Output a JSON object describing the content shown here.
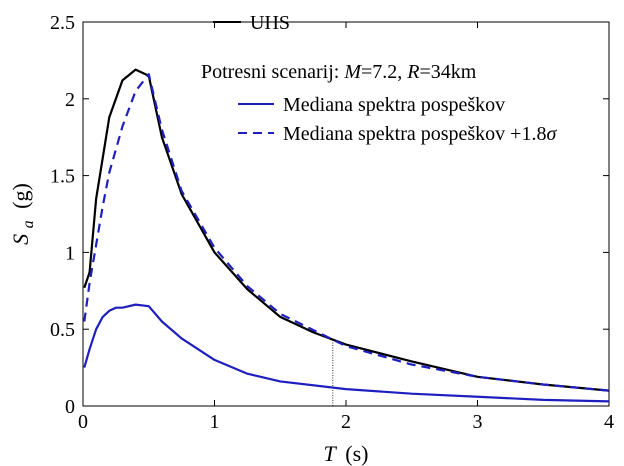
{
  "chart_data": {
    "type": "line",
    "xlabel": "T (s)",
    "xlabel_var": "T",
    "xlabel_unit": "(s)",
    "ylabel": "Sa (g)",
    "ylabel_var": "S",
    "ylabel_sub": "a",
    "ylabel_unit": "(g)",
    "xlim": [
      0,
      4
    ],
    "ylim": [
      0,
      2.5
    ],
    "x_ticks": [
      0,
      1,
      2,
      3,
      4
    ],
    "x_tick_labels": [
      "0",
      "1",
      "2",
      "3",
      "4"
    ],
    "y_ticks": [
      0,
      0.5,
      1,
      1.5,
      2,
      2.5
    ],
    "y_tick_labels": [
      "0",
      "0.5",
      "1",
      "1.5",
      "2",
      "2.5"
    ],
    "grid": false,
    "legend_placement": "top-right",
    "scenario_text": "Potresni scenarij: M=7.2, R=34km",
    "scenario_parts": {
      "prefix": "Potresni scenarij: ",
      "m_var": "M",
      "m_val": "=7.2, ",
      "r_var": "R",
      "r_val": "=34km"
    },
    "reference_line": {
      "x": 1.9,
      "y": 0.43
    },
    "series": [
      {
        "name": "UHS",
        "color": "#000000",
        "dash": "solid",
        "x": [
          0.01,
          0.05,
          0.1,
          0.2,
          0.3,
          0.4,
          0.5,
          0.6,
          0.75,
          1.0,
          1.25,
          1.5,
          1.75,
          2.0,
          2.5,
          3.0,
          3.5,
          4.0
        ],
        "y": [
          0.77,
          0.87,
          1.35,
          1.88,
          2.12,
          2.19,
          2.15,
          1.75,
          1.38,
          1.0,
          0.76,
          0.58,
          0.48,
          0.4,
          0.29,
          0.19,
          0.14,
          0.1
        ]
      },
      {
        "name": "Mediana spektra pospeškov",
        "color": "#1f1fbf",
        "dash": "solid",
        "x": [
          0.01,
          0.05,
          0.1,
          0.15,
          0.2,
          0.25,
          0.3,
          0.4,
          0.5,
          0.6,
          0.75,
          1.0,
          1.25,
          1.5,
          2.0,
          2.5,
          3.0,
          3.5,
          4.0
        ],
        "y": [
          0.25,
          0.37,
          0.5,
          0.58,
          0.62,
          0.64,
          0.64,
          0.66,
          0.65,
          0.55,
          0.44,
          0.3,
          0.21,
          0.16,
          0.11,
          0.08,
          0.06,
          0.04,
          0.03
        ]
      },
      {
        "name": "Mediana spektra pospeškov +1.8σ",
        "label_base": "Mediana spektra pospeškov +1.8",
        "label_symbol": "σ",
        "color": "#1f1fbf",
        "dash": "dashed",
        "x": [
          0.01,
          0.05,
          0.1,
          0.15,
          0.2,
          0.3,
          0.4,
          0.5,
          0.6,
          0.75,
          1.0,
          1.25,
          1.5,
          2.0,
          2.5,
          3.0,
          3.5,
          4.0
        ],
        "y": [
          0.55,
          0.8,
          1.05,
          1.3,
          1.52,
          1.82,
          2.05,
          2.16,
          1.8,
          1.4,
          1.03,
          0.78,
          0.6,
          0.39,
          0.27,
          0.19,
          0.14,
          0.1
        ]
      }
    ]
  }
}
